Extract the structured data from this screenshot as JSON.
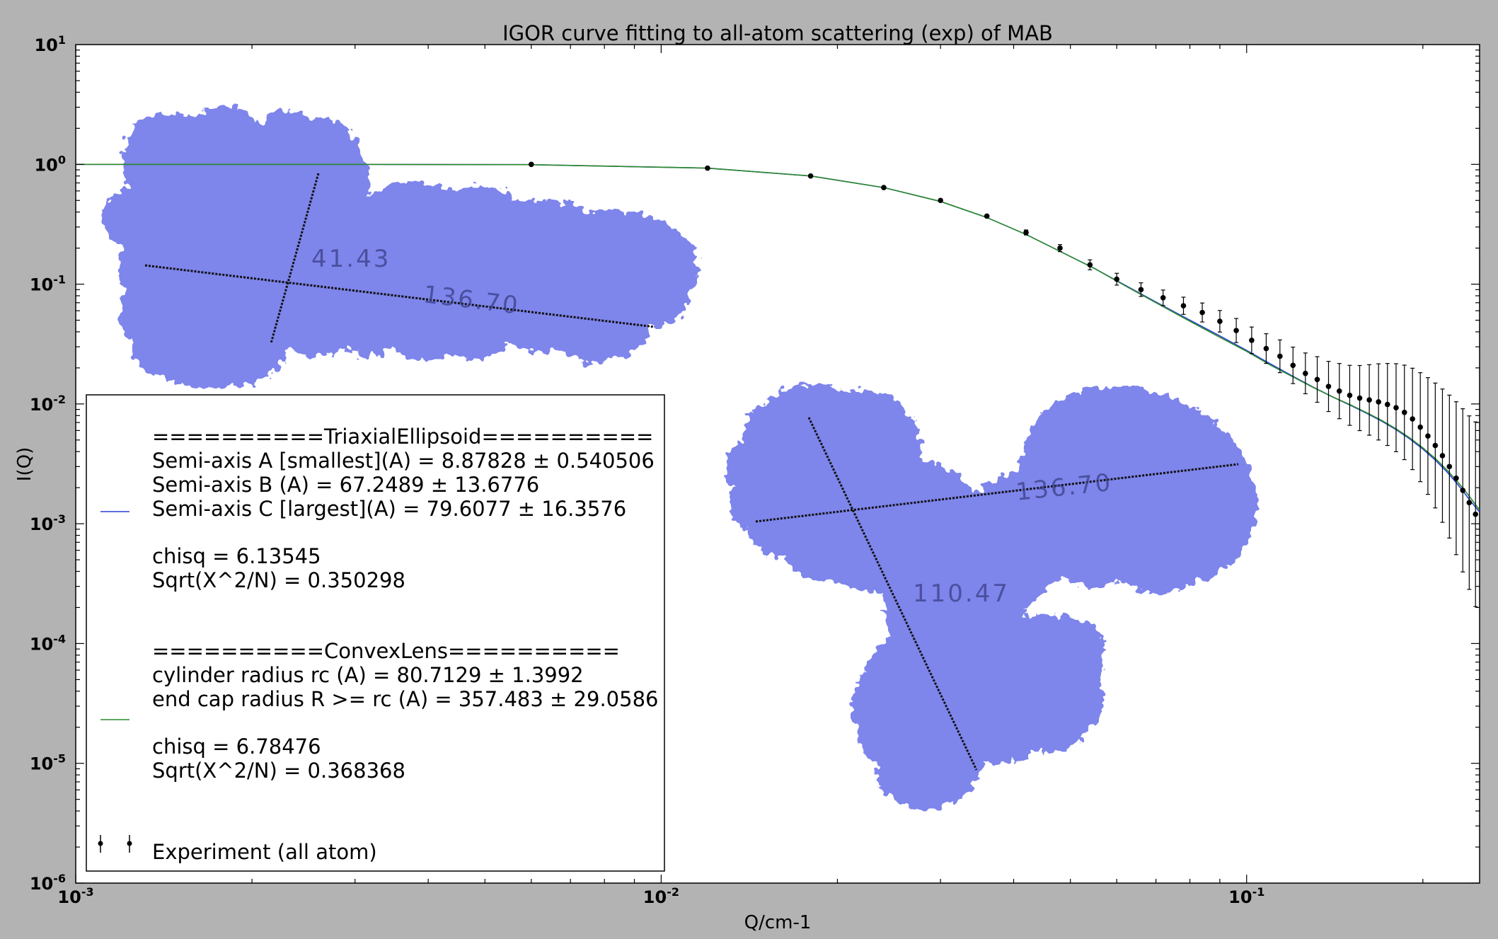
{
  "chart_data": {
    "type": "scatter",
    "title": "IGOR curve fitting to all-atom scattering (exp) of MAB",
    "xlabel": "Q/cm-1",
    "ylabel": "I(Q)",
    "x_scale": "log",
    "y_scale": "log",
    "xlim": [
      0.001,
      0.25
    ],
    "ylim": [
      1e-06,
      10
    ],
    "x_ticks": [
      {
        "value": 0.001,
        "base": "10",
        "exp": "-3"
      },
      {
        "value": 0.01,
        "base": "10",
        "exp": "-2"
      },
      {
        "value": 0.1,
        "base": "10",
        "exp": "-1"
      }
    ],
    "y_ticks": [
      {
        "value": 10,
        "base": "10",
        "exp": "1"
      },
      {
        "value": 1,
        "base": "10",
        "exp": "0"
      },
      {
        "value": 0.1,
        "base": "10",
        "exp": "-1"
      },
      {
        "value": 0.01,
        "base": "10",
        "exp": "-2"
      },
      {
        "value": 0.001,
        "base": "10",
        "exp": "-3"
      },
      {
        "value": 0.0001,
        "base": "10",
        "exp": "-4"
      },
      {
        "value": 1e-05,
        "base": "10",
        "exp": "-5"
      },
      {
        "value": 1e-06,
        "base": "10",
        "exp": "-6"
      }
    ],
    "series": [
      {
        "name": "TriaxialEllipsoid",
        "kind": "line",
        "color": "#2a3fd6",
        "x": [
          0.001,
          0.003,
          0.006,
          0.012,
          0.018,
          0.024,
          0.03,
          0.036,
          0.042,
          0.048,
          0.055,
          0.062,
          0.07,
          0.08,
          0.09,
          0.1,
          0.11,
          0.12,
          0.13,
          0.14,
          0.15,
          0.16,
          0.17,
          0.18,
          0.19,
          0.2,
          0.21,
          0.22,
          0.23,
          0.24,
          0.25
        ],
        "y": [
          1.0,
          1.0,
          0.995,
          0.93,
          0.8,
          0.64,
          0.49,
          0.36,
          0.26,
          0.188,
          0.135,
          0.098,
          0.071,
          0.05,
          0.037,
          0.028,
          0.0215,
          0.017,
          0.0138,
          0.0115,
          0.0098,
          0.0084,
          0.0072,
          0.0061,
          0.0051,
          0.0042,
          0.0034,
          0.0027,
          0.0021,
          0.0016,
          0.00125
        ]
      },
      {
        "name": "ConvexLens",
        "kind": "line",
        "color": "#2c8a2c",
        "x": [
          0.001,
          0.003,
          0.006,
          0.012,
          0.018,
          0.024,
          0.03,
          0.036,
          0.042,
          0.048,
          0.055,
          0.062,
          0.07,
          0.08,
          0.09,
          0.1,
          0.11,
          0.12,
          0.13,
          0.14,
          0.15,
          0.16,
          0.17,
          0.18,
          0.19,
          0.2,
          0.21,
          0.22,
          0.23,
          0.24,
          0.25
        ],
        "y": [
          1.0,
          1.0,
          0.995,
          0.93,
          0.8,
          0.64,
          0.49,
          0.36,
          0.26,
          0.188,
          0.135,
          0.097,
          0.07,
          0.049,
          0.036,
          0.0275,
          0.021,
          0.0168,
          0.0137,
          0.0115,
          0.0099,
          0.0085,
          0.0073,
          0.0062,
          0.0052,
          0.0043,
          0.0035,
          0.0028,
          0.0022,
          0.0017,
          0.0013
        ]
      },
      {
        "name": "Experiment (all atom)",
        "kind": "errorbar",
        "color": "#000000",
        "x": [
          0.006,
          0.012,
          0.018,
          0.024,
          0.03,
          0.036,
          0.042,
          0.048,
          0.054,
          0.06,
          0.066,
          0.072,
          0.078,
          0.084,
          0.09,
          0.096,
          0.102,
          0.108,
          0.114,
          0.12,
          0.126,
          0.132,
          0.138,
          0.144,
          0.15,
          0.156,
          0.162,
          0.168,
          0.174,
          0.18,
          0.186,
          0.192,
          0.198,
          0.204,
          0.21,
          0.216,
          0.222,
          0.228,
          0.234,
          0.24,
          0.246
        ],
        "y": [
          1.0,
          0.93,
          0.8,
          0.64,
          0.5,
          0.37,
          0.27,
          0.2,
          0.145,
          0.11,
          0.09,
          0.077,
          0.066,
          0.058,
          0.049,
          0.041,
          0.034,
          0.029,
          0.025,
          0.021,
          0.018,
          0.016,
          0.014,
          0.0128,
          0.0118,
          0.0112,
          0.0108,
          0.0104,
          0.0099,
          0.0093,
          0.0085,
          0.0075,
          0.0064,
          0.0054,
          0.0045,
          0.0037,
          0.003,
          0.0024,
          0.0019,
          0.0015,
          0.0012
        ],
        "yerr_factor": [
          1.0,
          1.0,
          1.0,
          1.0,
          1.0,
          1.02,
          1.05,
          1.07,
          1.1,
          1.12,
          1.14,
          1.16,
          1.18,
          1.2,
          1.23,
          1.26,
          1.29,
          1.33,
          1.37,
          1.42,
          1.48,
          1.55,
          1.62,
          1.7,
          1.78,
          1.87,
          1.97,
          2.08,
          2.2,
          2.33,
          2.48,
          2.65,
          2.85,
          3.07,
          3.32,
          3.6,
          3.95,
          4.35,
          4.8,
          5.3,
          5.9
        ]
      }
    ],
    "legend": {
      "placement": "lower-left",
      "blocks": [
        {
          "series": "TriaxialEllipsoid",
          "lines": [
            "==========TriaxialEllipsoid==========",
            "Semi-axis A [smallest](A) =  8.87828 ± 0.540506",
            "Semi-axis B (A) =   67.2489 ± 13.6776",
            "Semi-axis C [largest](A) =  79.6077 ± 16.3576",
            "",
            "chisq = 6.13545",
            "Sqrt(X^2/N) = 0.350298"
          ]
        },
        {
          "series": "ConvexLens",
          "lines": [
            "==========ConvexLens==========",
            "cylinder radius rc (A) = 80.7129 ± 1.3992",
            "end cap radius R >= rc (A) =  357.483 ± 29.0586",
            "",
            "chisq = 6.78476",
            "Sqrt(X^2/N) = 0.368368"
          ]
        },
        {
          "series": "Experiment (all atom)",
          "lines": [
            "Experiment (all atom)"
          ]
        }
      ]
    },
    "annotations": {
      "molecule_top": {
        "dim_short": "41.43",
        "dim_long": "136.70"
      },
      "molecule_bottom": {
        "dim_long": "136.70",
        "dim_short": "110.47"
      }
    },
    "grid": false
  },
  "colors": {
    "background": "#b3b3b3",
    "plot_area": "#ffffff",
    "molecule": "#5a64e6"
  }
}
